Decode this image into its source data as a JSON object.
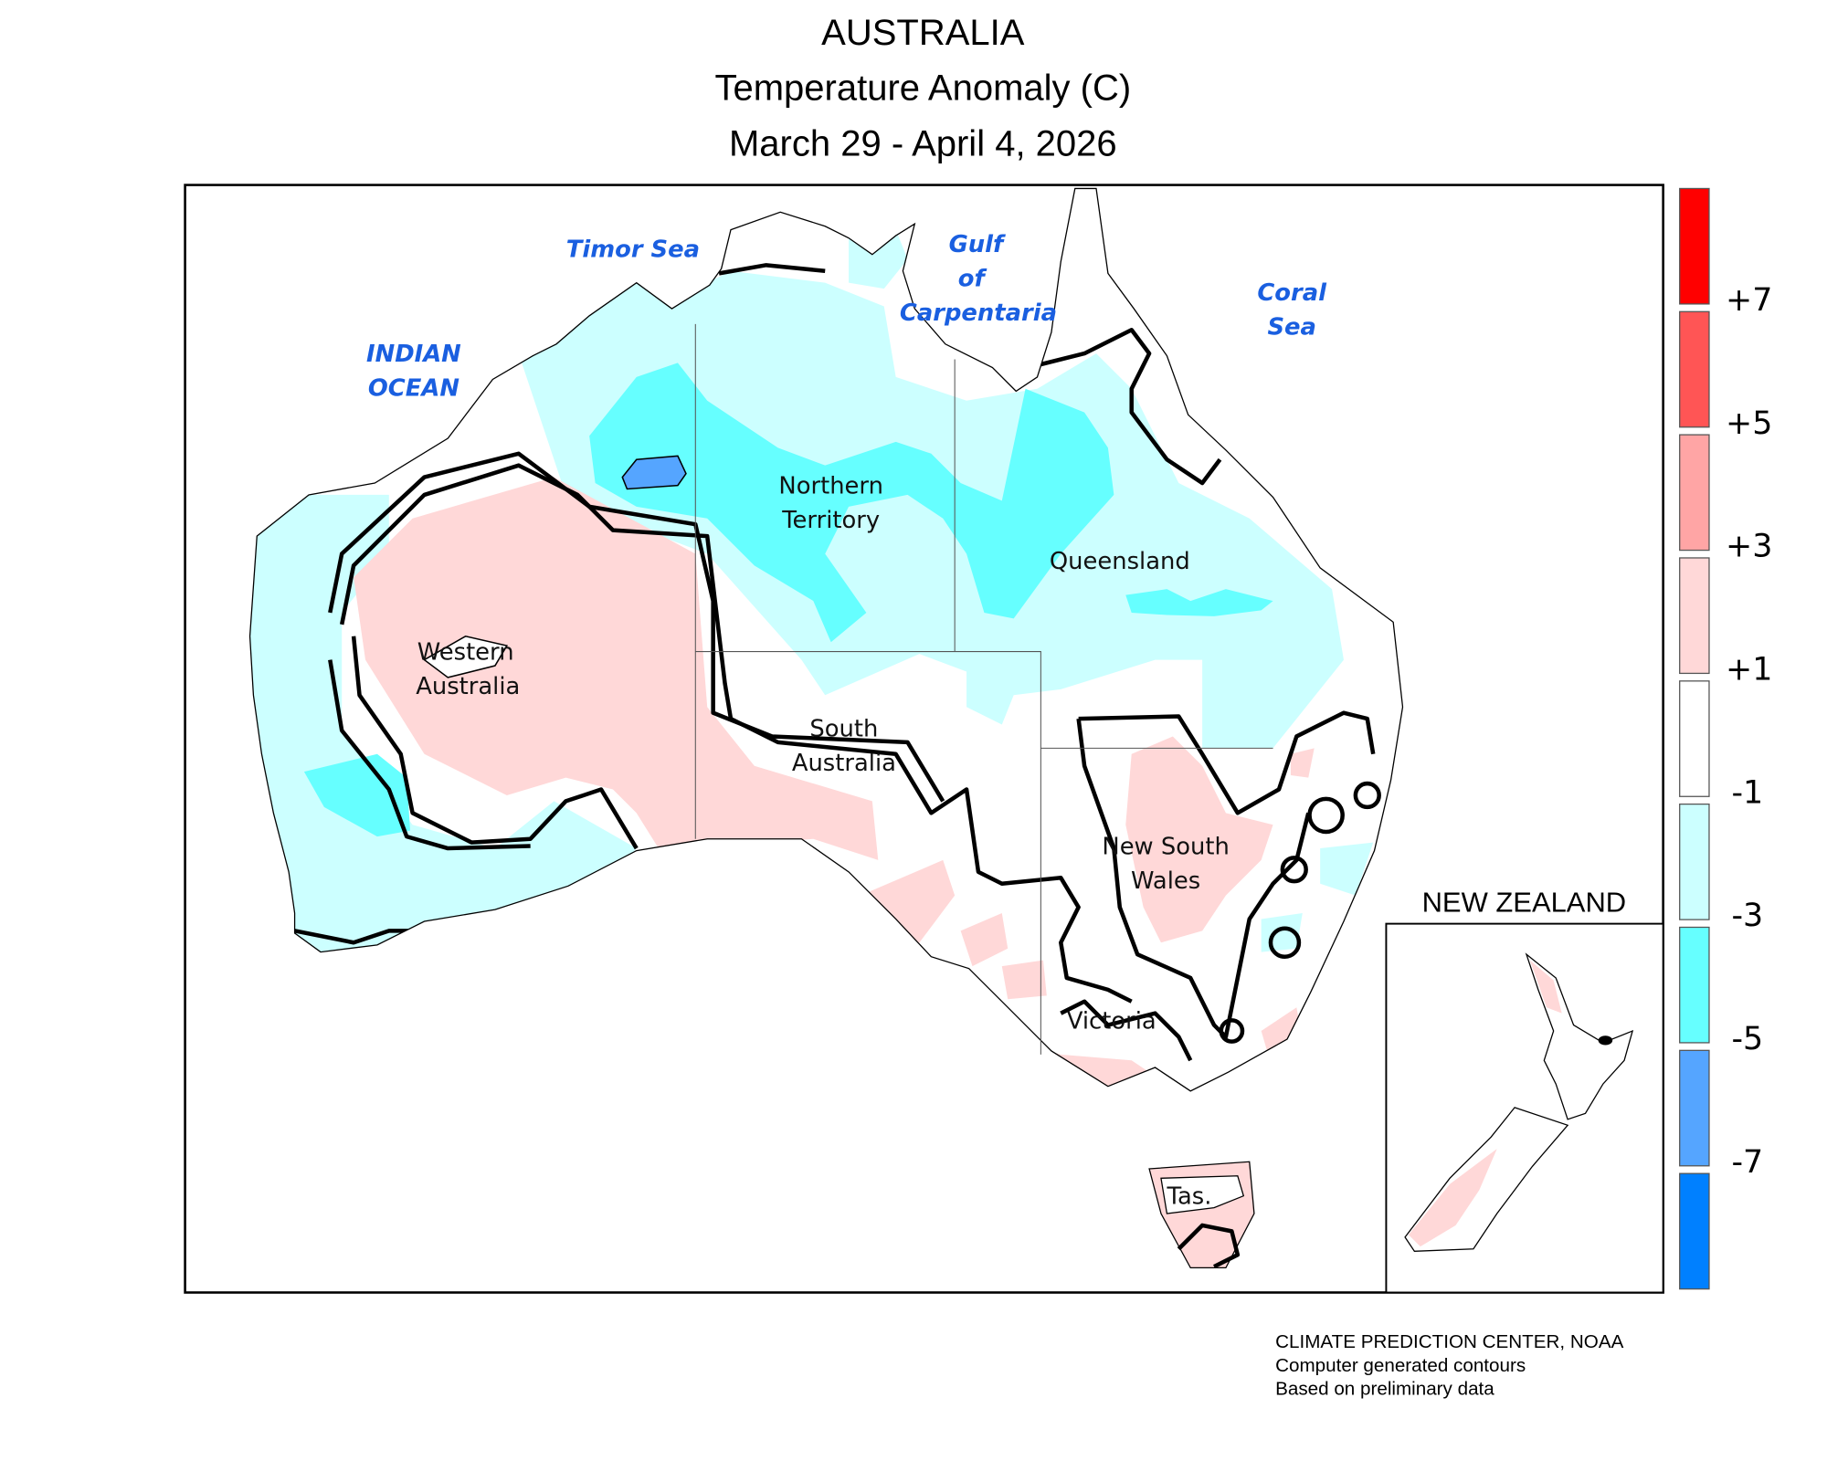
{
  "title": {
    "line1": "AUSTRALIA",
    "line2": "Temperature Anomaly (C)",
    "line3": "March 29 - April 4, 2026"
  },
  "sea_labels": {
    "timor": "Timor Sea",
    "gulf1": "Gulf",
    "gulf2": "of",
    "gulf3": "Carpentaria",
    "coral1": "Coral",
    "coral2": "Sea",
    "indian1": "INDIAN",
    "indian2": "OCEAN"
  },
  "region_labels": {
    "nt1": "Northern",
    "nt2": "Territory",
    "qld": "Queensland",
    "wa1": "Western",
    "wa2": "Australia",
    "sa1": "South",
    "sa2": "Australia",
    "nsw1": "New South",
    "nsw2": "Wales",
    "vic": "Victoria",
    "tas": "Tas."
  },
  "inset": {
    "title": "NEW ZEALAND"
  },
  "legend": {
    "colors": [
      "#ff0000",
      "#ff5555",
      "#ffa5a5",
      "#ffd8d8",
      "#ffffff",
      "#ccffff",
      "#66ffff",
      "#55a5ff",
      "#0080ff"
    ],
    "labels": [
      "+7",
      "+5",
      "+3",
      "+1",
      "-1",
      "-3",
      "-5",
      "-7"
    ]
  },
  "footer": {
    "line1": "CLIMATE PREDICTION CENTER, NOAA",
    "line2": "Computer generated contours",
    "line3": "Based on preliminary data"
  }
}
